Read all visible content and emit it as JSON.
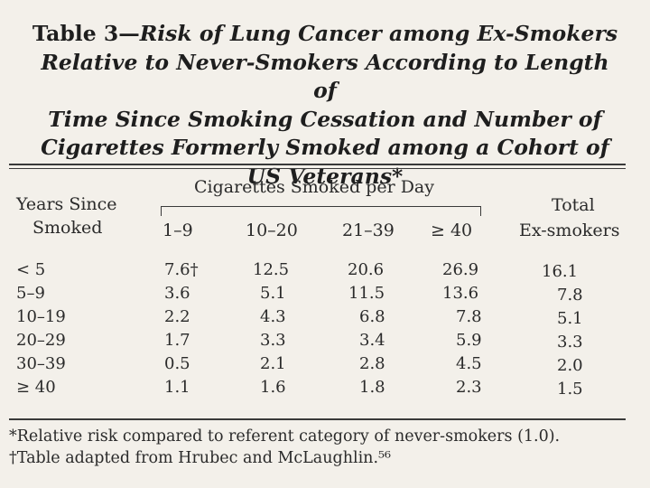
{
  "title": {
    "line1_lead": "Table 3—",
    "line1_rest": "Risk of Lung Cancer among Ex-Smokers",
    "line2": "Relative to Never-Smokers According to Length of",
    "line3": "Time Since Smoking Cessation and Number of",
    "line4": "Cigarettes Formerly Smoked among a Cohort of",
    "line5": "US Veterans*"
  },
  "header": {
    "years_line1": "Years Since",
    "years_line2": "Smoked",
    "group_label": "Cigarettes Smoked per Day",
    "columns": [
      "1–9",
      "10–20",
      "21–39",
      "≥ 40"
    ],
    "total_line1": "Total",
    "total_line2": "Ex-smokers"
  },
  "rows": [
    {
      "label": "< 5",
      "values": [
        "7.6†",
        "12.5",
        "20.6",
        "26.9"
      ],
      "total": "16.1"
    },
    {
      "label": "5–9",
      "values": [
        "3.6",
        "5.1",
        "11.5",
        "13.6"
      ],
      "total": "7.8"
    },
    {
      "label": "10–19",
      "values": [
        "2.2",
        "4.3",
        "6.8",
        "7.8"
      ],
      "total": "5.1"
    },
    {
      "label": "20–29",
      "values": [
        "1.7",
        "3.3",
        "3.4",
        "5.9"
      ],
      "total": "3.3"
    },
    {
      "label": "30–39",
      "values": [
        "0.5",
        "2.1",
        "2.8",
        "4.5"
      ],
      "total": "2.0"
    },
    {
      "label": "≥ 40",
      "values": [
        "1.1",
        "1.6",
        "1.8",
        "2.3"
      ],
      "total": "1.5"
    }
  ],
  "footnotes": {
    "note1": "*Relative risk compared to referent category of never-smokers (1.0).",
    "note2": "†Table adapted from Hrubec and McLaughlin.⁵⁶"
  }
}
